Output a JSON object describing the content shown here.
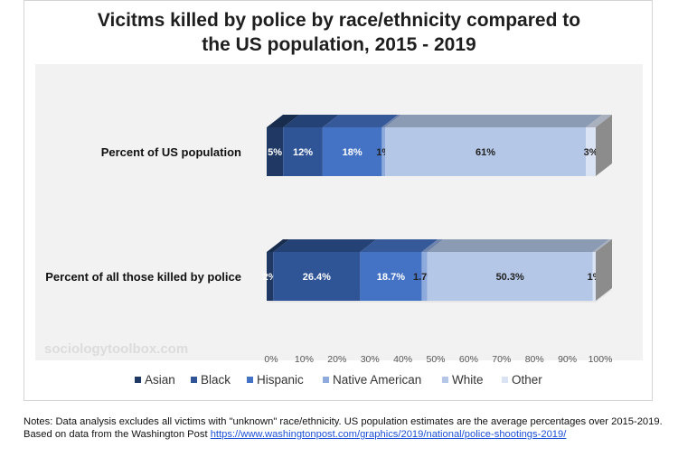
{
  "chart_data": {
    "type": "bar",
    "orientation": "horizontal",
    "stacked": true,
    "title_lines": [
      "Vicitms killed by police by race/ethnicity compared to",
      "the US population, 2015 - 2019"
    ],
    "categories": [
      "Percent of US population",
      "Percent of all those killed by police"
    ],
    "series": [
      {
        "name": "Asian",
        "color": "#1f3864",
        "values": [
          5,
          2
        ],
        "labels": [
          "5%",
          "2%"
        ],
        "label_color": "#ffffff"
      },
      {
        "name": "Black",
        "color": "#2f5597",
        "values": [
          12,
          26.4
        ],
        "labels": [
          "12%",
          "26.4%"
        ],
        "label_color": "#ffffff"
      },
      {
        "name": "Hispanic",
        "color": "#4472c4",
        "values": [
          18,
          18.7
        ],
        "labels": [
          "18%",
          "18.7%"
        ],
        "label_color": "#ffffff"
      },
      {
        "name": "Native American",
        "color": "#8faadc",
        "values": [
          1,
          1.7
        ],
        "labels": [
          "1%",
          "1.7%"
        ],
        "label_color": "#222222"
      },
      {
        "name": "White",
        "color": "#b4c7e7",
        "values": [
          61,
          50.3
        ],
        "labels": [
          "61%",
          "50.3%"
        ],
        "label_color": "#222222"
      },
      {
        "name": "Other",
        "color": "#dae3f3",
        "values": [
          3,
          1
        ],
        "labels": [
          "3%",
          "1%"
        ],
        "label_color": "#222222"
      }
    ],
    "xaxis": {
      "min": 0,
      "max": 100,
      "ticks": [
        "0%",
        "10%",
        "20%",
        "30%",
        "40%",
        "50%",
        "60%",
        "70%",
        "80%",
        "90%",
        "100%"
      ]
    },
    "legend_position": "bottom",
    "watermark": "sociologytoolbox.com"
  },
  "notes": {
    "text": "Notes: Data analysis excludes all victims with \"unknown\" race/ethnicity. US population estimates are the average percentages over 2015-2019. Based on data from the Washington Post ",
    "link": "https://www.washingtonpost.com/graphics/2019/national/police-shootings-2019/"
  }
}
